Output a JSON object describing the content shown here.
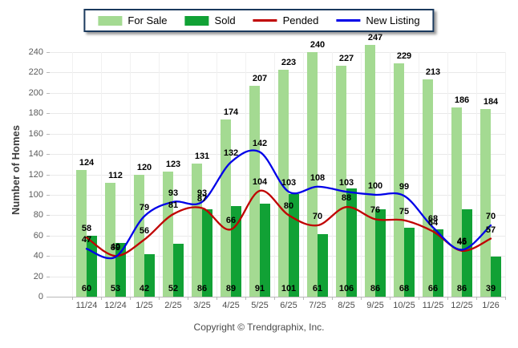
{
  "legend": {
    "items": [
      {
        "label": "For Sale",
        "color": "#a4da92",
        "marker": "swatch"
      },
      {
        "label": "Sold",
        "color": "#11a135",
        "marker": "swatch"
      },
      {
        "label": "Pended",
        "color": "#c00000",
        "marker": "line"
      },
      {
        "label": "New Listing",
        "color": "#0000e8",
        "marker": "line"
      }
    ]
  },
  "y_axis": {
    "title": "Number of Homes",
    "ticks": [
      0,
      20,
      40,
      60,
      80,
      100,
      120,
      140,
      160,
      180,
      200,
      220,
      240
    ]
  },
  "footer": {
    "copyright": "Copyright © Trendgraphix, Inc."
  },
  "chart_data": {
    "type": "bar",
    "title": "",
    "categories": [
      "11/24",
      "12/24",
      "1/25",
      "2/25",
      "3/25",
      "4/25",
      "5/25",
      "6/25",
      "7/25",
      "8/25",
      "9/25",
      "10/25",
      "11/25",
      "12/25",
      "1/26"
    ],
    "series": [
      {
        "name": "For Sale",
        "type": "bar",
        "color": "#a4da92",
        "values": [
          124,
          112,
          120,
          123,
          131,
          174,
          207,
          223,
          240,
          227,
          247,
          229,
          213,
          186,
          184
        ]
      },
      {
        "name": "Sold",
        "type": "bar",
        "color": "#11a135",
        "values": [
          60,
          53,
          42,
          52,
          86,
          89,
          91,
          101,
          61,
          106,
          86,
          68,
          66,
          86,
          39
        ]
      },
      {
        "name": "Pended",
        "type": "line",
        "color": "#c00000",
        "values": [
          58,
          40,
          56,
          81,
          87,
          66,
          104,
          80,
          70,
          88,
          76,
          75,
          64,
          45,
          57
        ]
      },
      {
        "name": "New Listing",
        "type": "line",
        "color": "#0000e8",
        "values": [
          47,
          39,
          79,
          93,
          93,
          132,
          142,
          103,
          108,
          103,
          100,
          99,
          68,
          46,
          70
        ]
      }
    ],
    "xlabel": "",
    "ylabel": "Number of Homes",
    "ylim": [
      0,
      240
    ],
    "ytick_step": 20,
    "grid": true,
    "legend_position": "top",
    "value_labels": true
  }
}
